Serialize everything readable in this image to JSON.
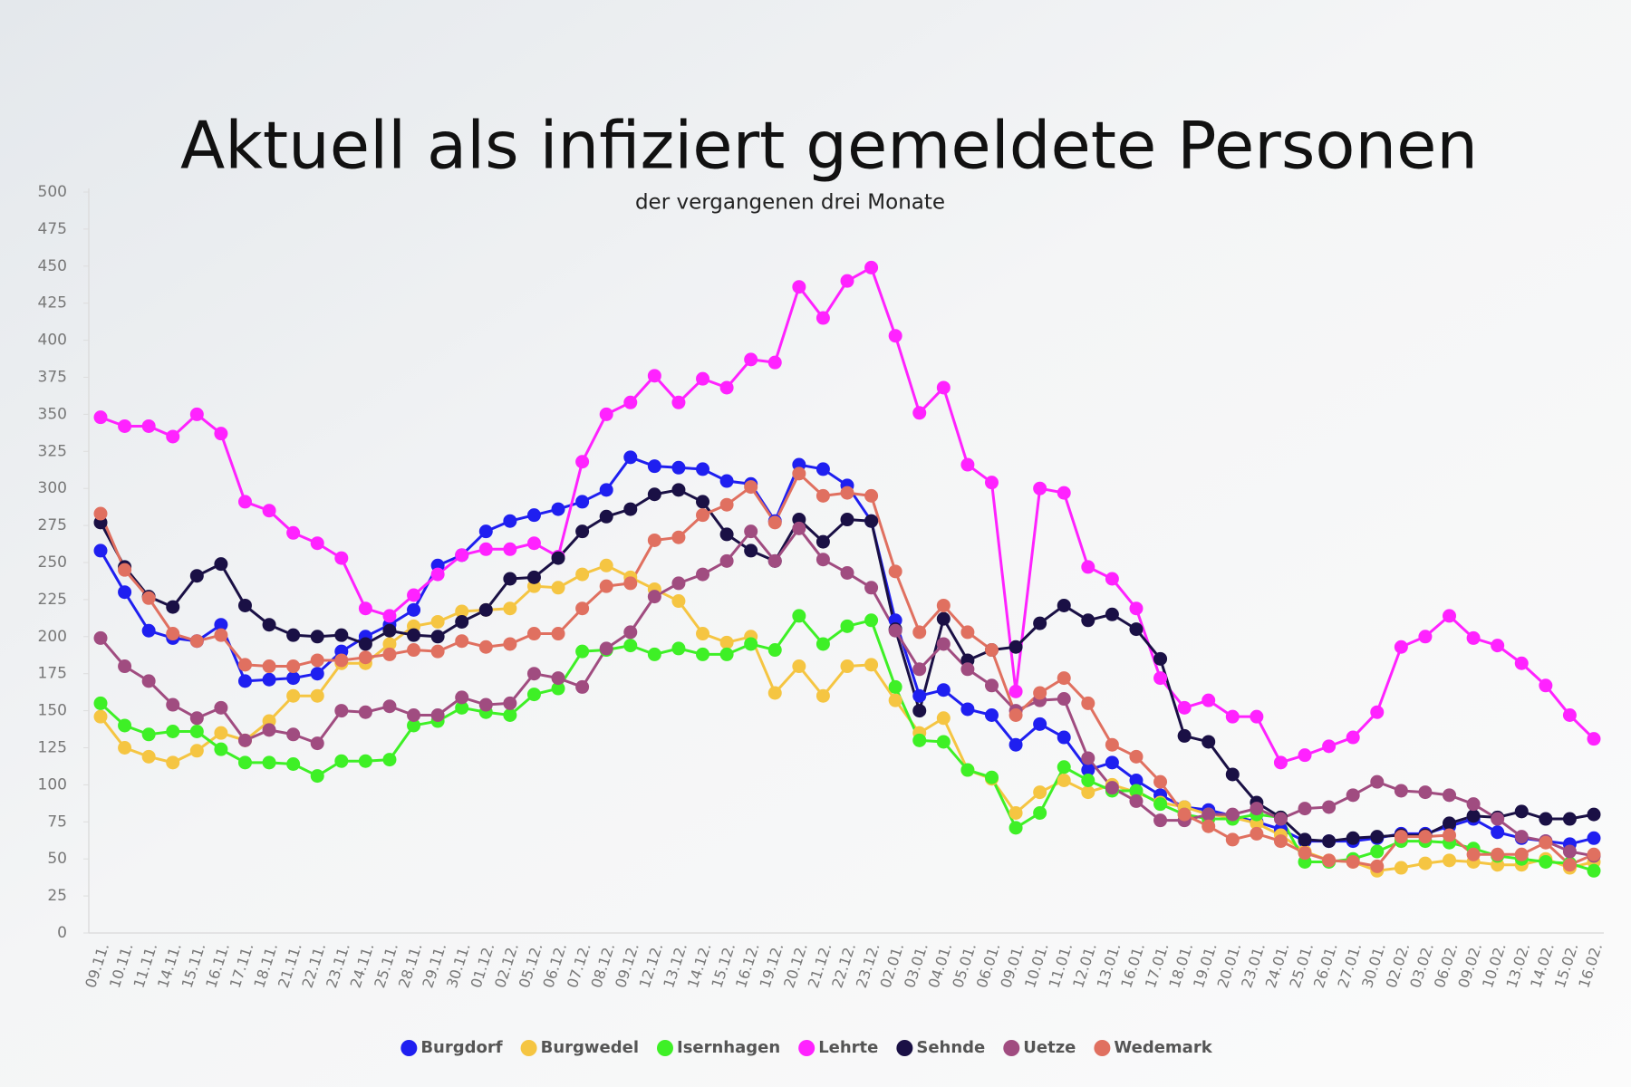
{
  "chart_data": {
    "type": "line",
    "title": "Aktuell als infiziert gemeldete Personen",
    "subtitle": "der vergangenen drei Monate",
    "categories": [
      "09.11.",
      "10.11.",
      "11.11.",
      "14.11.",
      "15.11.",
      "16.11.",
      "17.11.",
      "18.11.",
      "21.11.",
      "22.11.",
      "23.11.",
      "24.11.",
      "25.11.",
      "28.11.",
      "29.11.",
      "30.11.",
      "01.12.",
      "02.12.",
      "05.12.",
      "06.12.",
      "07.12.",
      "08.12.",
      "09.12.",
      "12.12.",
      "13.12.",
      "14.12.",
      "15.12.",
      "16.12.",
      "19.12.",
      "20.12.",
      "21.12.",
      "22.12.",
      "23.12.",
      "02.01.",
      "03.01.",
      "04.01.",
      "05.01.",
      "06.01.",
      "09.01.",
      "10.01.",
      "11.01.",
      "12.01.",
      "13.01.",
      "16.01.",
      "17.01.",
      "18.01.",
      "19.01.",
      "20.01.",
      "23.01.",
      "24.01.",
      "25.01.",
      "26.01.",
      "27.01.",
      "30.01.",
      "02.02.",
      "03.02.",
      "06.02.",
      "09.02.",
      "10.02.",
      "13.02.",
      "14.02.",
      "15.02.",
      "16.02."
    ],
    "ylim": [
      0,
      500
    ],
    "yticks": [
      0,
      25,
      50,
      75,
      100,
      125,
      150,
      175,
      200,
      225,
      250,
      275,
      300,
      325,
      350,
      375,
      400,
      425,
      450,
      475,
      500
    ],
    "legend": "bottom",
    "series": [
      {
        "name": "Burgdorf",
        "color": "#1f1ff0",
        "values": [
          258,
          230,
          204,
          199,
          197,
          208,
          170,
          171,
          172,
          175,
          190,
          200,
          208,
          218,
          248,
          255,
          271,
          278,
          282,
          286,
          291,
          299,
          321,
          315,
          314,
          313,
          305,
          303,
          278,
          316,
          313,
          302,
          278,
          211,
          160,
          164,
          151,
          147,
          127,
          141,
          132,
          110,
          115,
          103,
          93,
          85,
          83,
          79,
          75,
          70,
          62,
          62,
          62,
          64,
          67,
          67,
          72,
          77,
          68,
          64,
          62,
          60,
          64
        ]
      },
      {
        "name": "Burgwedel",
        "color": "#f5c542",
        "values": [
          146,
          125,
          119,
          115,
          123,
          135,
          130,
          143,
          160,
          160,
          182,
          182,
          195,
          207,
          210,
          217,
          218,
          219,
          234,
          233,
          242,
          248,
          240,
          232,
          224,
          202,
          196,
          200,
          162,
          180,
          160,
          180,
          181,
          157,
          135,
          145,
          110,
          104,
          81,
          95,
          103,
          95,
          100,
          95,
          88,
          85,
          80,
          78,
          74,
          66,
          55,
          49,
          48,
          42,
          44,
          47,
          49,
          48,
          46,
          46,
          50,
          44,
          48
        ]
      },
      {
        "name": "Isernhagen",
        "color": "#3ef026",
        "values": [
          155,
          140,
          134,
          136,
          136,
          124,
          115,
          115,
          114,
          106,
          116,
          116,
          117,
          140,
          143,
          152,
          149,
          147,
          161,
          165,
          190,
          191,
          194,
          188,
          192,
          188,
          188,
          195,
          191,
          214,
          195,
          207,
          211,
          166,
          130,
          129,
          110,
          105,
          71,
          81,
          112,
          103,
          96,
          96,
          87,
          80,
          77,
          77,
          80,
          78,
          48,
          48,
          50,
          55,
          62,
          62,
          61,
          57,
          52,
          50,
          48,
          47,
          42
        ]
      },
      {
        "name": "Lehrte",
        "color": "#ff22ff",
        "values": [
          348,
          342,
          342,
          335,
          350,
          337,
          291,
          285,
          270,
          263,
          253,
          219,
          214,
          228,
          242,
          255,
          259,
          259,
          263,
          254,
          318,
          350,
          358,
          376,
          358,
          374,
          368,
          387,
          385,
          436,
          415,
          440,
          449,
          403,
          351,
          368,
          316,
          304,
          163,
          300,
          297,
          247,
          239,
          219,
          172,
          152,
          157,
          146,
          146,
          115,
          120,
          126,
          132,
          149,
          193,
          200,
          214,
          199,
          194,
          182,
          167,
          147,
          131
        ]
      },
      {
        "name": "Sehnde",
        "color": "#1a1045",
        "values": [
          277,
          247,
          227,
          220,
          241,
          249,
          221,
          208,
          201,
          200,
          201,
          195,
          204,
          201,
          200,
          210,
          218,
          239,
          240,
          253,
          271,
          281,
          286,
          296,
          299,
          291,
          269,
          258,
          251,
          279,
          264,
          279,
          278,
          205,
          150,
          212,
          184,
          191,
          193,
          209,
          221,
          211,
          215,
          205,
          185,
          133,
          129,
          107,
          88,
          78,
          63,
          62,
          64,
          65,
          66,
          66,
          74,
          79,
          78,
          82,
          77,
          77,
          80
        ]
      },
      {
        "name": "Uetze",
        "color": "#a04c80",
        "values": [
          199,
          180,
          170,
          154,
          145,
          152,
          130,
          137,
          134,
          128,
          150,
          149,
          153,
          147,
          147,
          159,
          154,
          155,
          175,
          172,
          166,
          192,
          203,
          227,
          236,
          242,
          251,
          271,
          251,
          273,
          252,
          243,
          233,
          204,
          178,
          195,
          178,
          167,
          150,
          157,
          158,
          118,
          98,
          89,
          76,
          76,
          80,
          80,
          84,
          77,
          84,
          85,
          93,
          102,
          96,
          95,
          93,
          87,
          77,
          65,
          62,
          55,
          52
        ]
      },
      {
        "name": "Wedemark",
        "color": "#e07060",
        "values": [
          283,
          245,
          226,
          202,
          197,
          201,
          181,
          180,
          180,
          184,
          184,
          186,
          188,
          191,
          190,
          197,
          193,
          195,
          202,
          202,
          219,
          234,
          236,
          265,
          267,
          282,
          289,
          301,
          277,
          310,
          295,
          297,
          295,
          244,
          203,
          221,
          203,
          191,
          147,
          162,
          172,
          155,
          127,
          119,
          102,
          80,
          72,
          63,
          67,
          62,
          54,
          49,
          48,
          45,
          65,
          65,
          66,
          53,
          53,
          53,
          61,
          46,
          53
        ]
      }
    ]
  }
}
